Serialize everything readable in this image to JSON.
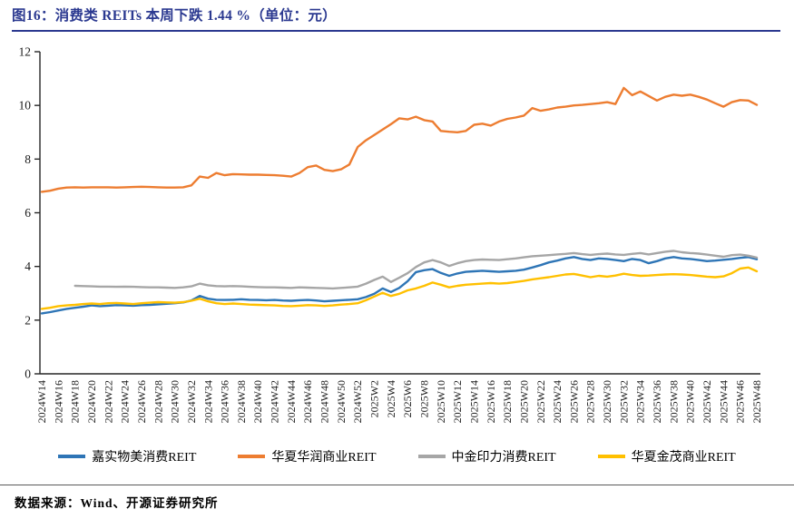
{
  "header": {
    "title": "图16：消费类 REITs 本周下跌 1.44 %（单位：元）"
  },
  "footer": {
    "source": "数据来源：Wind、开源证券研究所"
  },
  "chart_data": {
    "type": "line",
    "title": "消费类 REITs 本周下跌 1.44 %（单位：元）",
    "unit": "元",
    "xlabel": "",
    "ylabel": "",
    "ylim": [
      0,
      12
    ],
    "y_ticks": [
      0,
      2,
      4,
      6,
      8,
      10,
      12
    ],
    "x_tick_every": 2,
    "grid": false,
    "legend_position": "bottom",
    "axis_color": "#262626",
    "weeks": [
      "2024W14",
      "2024W15",
      "2024W16",
      "2024W17",
      "2024W18",
      "2024W19",
      "2024W20",
      "2024W21",
      "2024W22",
      "2024W23",
      "2024W24",
      "2024W25",
      "2024W26",
      "2024W27",
      "2024W28",
      "2024W29",
      "2024W30",
      "2024W31",
      "2024W32",
      "2024W33",
      "2024W34",
      "2024W35",
      "2024W36",
      "2024W37",
      "2024W38",
      "2024W39",
      "2024W40",
      "2024W41",
      "2024W42",
      "2024W43",
      "2024W44",
      "2024W45",
      "2024W46",
      "2024W47",
      "2024W48",
      "2024W49",
      "2024W50",
      "2024W51",
      "2024W52",
      "2025W1",
      "2025W2",
      "2025W3",
      "2025W4",
      "2025W5",
      "2025W6",
      "2025W7",
      "2025W8",
      "2025W9",
      "2025W10",
      "2025W11",
      "2025W12",
      "2025W13",
      "2025W14",
      "2025W15",
      "2025W16",
      "2025W17",
      "2025W18",
      "2025W19",
      "2025W20",
      "2025W21",
      "2025W22",
      "2025W23",
      "2025W24",
      "2025W25",
      "2025W26",
      "2025W27",
      "2025W28",
      "2025W29",
      "2025W30",
      "2025W31",
      "2025W32",
      "2025W33",
      "2025W34",
      "2025W35",
      "2025W36",
      "2025W37",
      "2025W38",
      "2025W39",
      "2025W40",
      "2025W41",
      "2025W42",
      "2025W43",
      "2025W44",
      "2025W45",
      "2025W46",
      "2025W47",
      "2025W48"
    ],
    "series": [
      {
        "name": "嘉实物美消费REIT",
        "color": "#2E75B6",
        "start_index": 0,
        "values": [
          2.25,
          2.3,
          2.36,
          2.42,
          2.46,
          2.5,
          2.55,
          2.52,
          2.54,
          2.56,
          2.55,
          2.54,
          2.56,
          2.57,
          2.59,
          2.61,
          2.63,
          2.66,
          2.73,
          2.9,
          2.8,
          2.76,
          2.75,
          2.76,
          2.78,
          2.76,
          2.75,
          2.74,
          2.75,
          2.73,
          2.72,
          2.74,
          2.75,
          2.73,
          2.7,
          2.72,
          2.74,
          2.76,
          2.78,
          2.86,
          2.98,
          3.18,
          3.05,
          3.2,
          3.45,
          3.79,
          3.86,
          3.9,
          3.76,
          3.65,
          3.74,
          3.8,
          3.82,
          3.84,
          3.82,
          3.8,
          3.82,
          3.84,
          3.88,
          3.96,
          4.05,
          4.15,
          4.22,
          4.3,
          4.35,
          4.28,
          4.24,
          4.3,
          4.28,
          4.24,
          4.2,
          4.28,
          4.24,
          4.12,
          4.2,
          4.3,
          4.35,
          4.3,
          4.28,
          4.24,
          4.2,
          4.22,
          4.25,
          4.28,
          4.32,
          4.35,
          4.27
        ]
      },
      {
        "name": "华夏华润商业REIT",
        "color": "#ED7D31",
        "start_index": 0,
        "values": [
          6.78,
          6.82,
          6.9,
          6.94,
          6.95,
          6.94,
          6.95,
          6.95,
          6.95,
          6.94,
          6.95,
          6.96,
          6.97,
          6.96,
          6.95,
          6.94,
          6.94,
          6.95,
          7.02,
          7.35,
          7.3,
          7.48,
          7.4,
          7.44,
          7.43,
          7.42,
          7.42,
          7.41,
          7.4,
          7.38,
          7.35,
          7.48,
          7.7,
          7.76,
          7.6,
          7.55,
          7.62,
          7.8,
          8.45,
          8.7,
          8.9,
          9.1,
          9.3,
          9.52,
          9.48,
          9.58,
          9.45,
          9.4,
          9.05,
          9.02,
          9.0,
          9.05,
          9.28,
          9.32,
          9.25,
          9.4,
          9.5,
          9.55,
          9.62,
          9.9,
          9.8,
          9.85,
          9.92,
          9.95,
          10.0,
          10.02,
          10.05,
          10.08,
          10.12,
          10.05,
          10.65,
          10.38,
          10.52,
          10.35,
          10.18,
          10.32,
          10.4,
          10.36,
          10.4,
          10.32,
          10.22,
          10.08,
          9.95,
          10.12,
          10.2,
          10.18,
          10.02
        ]
      },
      {
        "name": "中金印力消费REIT",
        "color": "#A6A6A6",
        "start_index": 4,
        "values": [
          3.28,
          3.27,
          3.26,
          3.25,
          3.25,
          3.24,
          3.25,
          3.24,
          3.23,
          3.22,
          3.22,
          3.21,
          3.2,
          3.22,
          3.26,
          3.36,
          3.3,
          3.27,
          3.26,
          3.27,
          3.26,
          3.24,
          3.23,
          3.22,
          3.22,
          3.21,
          3.2,
          3.22,
          3.21,
          3.2,
          3.19,
          3.18,
          3.2,
          3.22,
          3.25,
          3.36,
          3.5,
          3.62,
          3.42,
          3.58,
          3.75,
          3.98,
          4.15,
          4.24,
          4.15,
          4.02,
          4.12,
          4.2,
          4.24,
          4.26,
          4.25,
          4.24,
          4.27,
          4.3,
          4.34,
          4.38,
          4.4,
          4.42,
          4.45,
          4.47,
          4.5,
          4.46,
          4.43,
          4.46,
          4.48,
          4.45,
          4.43,
          4.47,
          4.5,
          4.45,
          4.5,
          4.55,
          4.58,
          4.53,
          4.5,
          4.48,
          4.44,
          4.4,
          4.36,
          4.42,
          4.44,
          4.4,
          4.33
        ]
      },
      {
        "name": "华夏金茂商业REIT",
        "color": "#FFC000",
        "start_index": 0,
        "values": [
          2.42,
          2.46,
          2.52,
          2.55,
          2.57,
          2.6,
          2.62,
          2.6,
          2.63,
          2.64,
          2.62,
          2.6,
          2.63,
          2.65,
          2.67,
          2.66,
          2.65,
          2.67,
          2.72,
          2.8,
          2.7,
          2.63,
          2.6,
          2.62,
          2.6,
          2.58,
          2.57,
          2.56,
          2.55,
          2.53,
          2.52,
          2.54,
          2.56,
          2.55,
          2.53,
          2.55,
          2.58,
          2.6,
          2.63,
          2.74,
          2.88,
          3.02,
          2.9,
          2.98,
          3.11,
          3.18,
          3.28,
          3.4,
          3.32,
          3.22,
          3.28,
          3.32,
          3.34,
          3.36,
          3.38,
          3.36,
          3.38,
          3.42,
          3.46,
          3.52,
          3.56,
          3.6,
          3.65,
          3.7,
          3.72,
          3.66,
          3.6,
          3.65,
          3.62,
          3.66,
          3.73,
          3.68,
          3.65,
          3.66,
          3.68,
          3.7,
          3.71,
          3.7,
          3.68,
          3.65,
          3.62,
          3.6,
          3.63,
          3.75,
          3.92,
          3.96,
          3.82
        ]
      }
    ]
  }
}
